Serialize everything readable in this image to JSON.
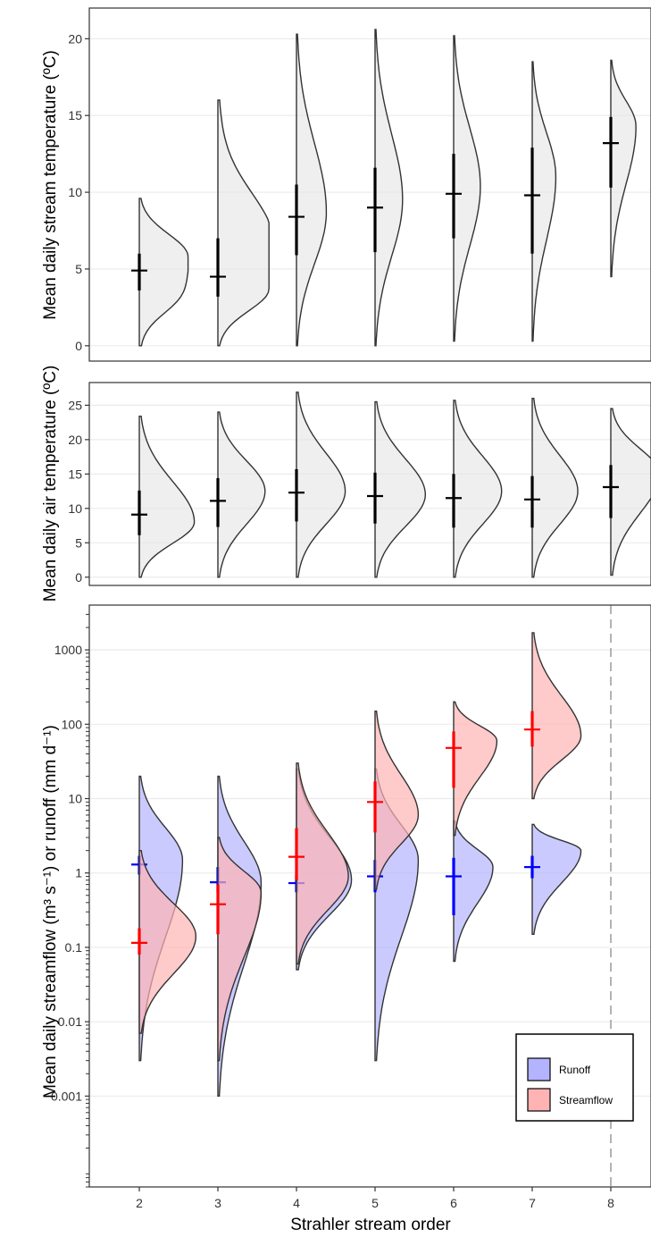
{
  "chart_data": [
    {
      "type": "violin",
      "ylabel": "Mean daily stream temperature (ºC)",
      "ylim": [
        -1,
        22
      ],
      "yticks": [
        0,
        5,
        10,
        15,
        20
      ],
      "grid": true,
      "violins": [
        {
          "x": 2,
          "ymin": 0,
          "ymax": 9.6,
          "peak": 5.8,
          "width": 0.62,
          "lump": 3.0,
          "median": 4.9,
          "lo": 3.6,
          "hi": 6.0,
          "color": "#000000"
        },
        {
          "x": 3,
          "ymin": 0,
          "ymax": 16.0,
          "peak": 3.7,
          "width": 0.65,
          "lump": 8.0,
          "median": 4.5,
          "lo": 3.2,
          "hi": 7.0,
          "color": "#000000"
        },
        {
          "x": 4,
          "ymin": 0,
          "ymax": 20.3,
          "peak": 8.7,
          "width": 0.38,
          "median": 8.4,
          "lo": 5.9,
          "hi": 10.5,
          "color": "#000000"
        },
        {
          "x": 5,
          "ymin": 0,
          "ymax": 20.6,
          "peak": 9.5,
          "width": 0.35,
          "median": 9.0,
          "lo": 6.1,
          "hi": 11.6,
          "color": "#000000"
        },
        {
          "x": 6,
          "ymin": 0.3,
          "ymax": 20.2,
          "peak": 10.4,
          "width": 0.34,
          "median": 9.9,
          "lo": 7.0,
          "hi": 12.5,
          "color": "#000000"
        },
        {
          "x": 7,
          "ymin": 0.3,
          "ymax": 18.5,
          "peak": 11.0,
          "width": 0.3,
          "median": 9.8,
          "lo": 6.0,
          "hi": 12.9,
          "color": "#000000"
        },
        {
          "x": 8,
          "ymin": 4.5,
          "ymax": 18.6,
          "peak": 14.3,
          "width": 0.32,
          "median": 13.2,
          "lo": 10.3,
          "hi": 14.9,
          "color": "#000000"
        }
      ]
    },
    {
      "type": "violin",
      "ylabel": "Mean daily air temperature (ºC)",
      "ylim": [
        -1.2,
        28.3
      ],
      "yticks": [
        0,
        5,
        10,
        15,
        20,
        25
      ],
      "grid": true,
      "violins": [
        {
          "x": 2,
          "ymin": 0,
          "ymax": 23.4,
          "peak": 8.0,
          "width": 0.7,
          "median": 9.1,
          "lo": 6.1,
          "hi": 12.6,
          "color": "#000000"
        },
        {
          "x": 3,
          "ymin": 0,
          "ymax": 24.0,
          "peak": 12.5,
          "width": 0.6,
          "median": 11.1,
          "lo": 7.3,
          "hi": 14.4,
          "color": "#000000"
        },
        {
          "x": 4,
          "ymin": 0,
          "ymax": 26.9,
          "peak": 12.5,
          "width": 0.62,
          "median": 12.3,
          "lo": 8.1,
          "hi": 15.7,
          "color": "#000000"
        },
        {
          "x": 5,
          "ymin": 0,
          "ymax": 25.5,
          "peak": 12.0,
          "width": 0.64,
          "median": 11.8,
          "lo": 7.8,
          "hi": 15.2,
          "color": "#000000"
        },
        {
          "x": 6,
          "ymin": 0,
          "ymax": 25.7,
          "peak": 12.5,
          "width": 0.61,
          "median": 11.5,
          "lo": 7.2,
          "hi": 15.0,
          "color": "#000000"
        },
        {
          "x": 7,
          "ymin": 0,
          "ymax": 26.0,
          "peak": 12.5,
          "width": 0.58,
          "median": 11.3,
          "lo": 7.2,
          "hi": 14.7,
          "color": "#000000"
        },
        {
          "x": 8,
          "ymin": 0.3,
          "ymax": 24.5,
          "peak": 15.0,
          "width": 0.62,
          "median": 13.1,
          "lo": 8.6,
          "hi": 16.3,
          "color": "#000000"
        }
      ]
    },
    {
      "type": "violin",
      "log_y": true,
      "xlabel": "Strahler stream order",
      "ylabel": "Mean daily streamflow (m³ s⁻¹)  or runoff (mm d⁻¹)",
      "ylim": [
        6e-05,
        4000
      ],
      "yticks": [
        0.001,
        0.01,
        0.1,
        1,
        10,
        100,
        1000
      ],
      "ytick_labels": [
        "0.001",
        "0.01",
        "0.1",
        "1",
        "10",
        "100",
        "1000"
      ],
      "xticks": [
        2,
        3,
        4,
        5,
        6,
        7,
        8
      ],
      "xtick_labels": [
        "2",
        "3",
        "4",
        "5",
        "6",
        "7",
        "8"
      ],
      "vline": {
        "x": 8,
        "style": "dashed",
        "color": "#b3b3b3"
      },
      "grid": true,
      "legend": {
        "placement": "bottom-right",
        "entries": [
          {
            "label": "Runoff",
            "color": "#b3b3ff"
          },
          {
            "label": "Streamflow",
            "color": "#ffb3b3"
          }
        ]
      },
      "series": [
        {
          "name": "Runoff",
          "fill": "#b3b3ff",
          "marker": "#0000ff",
          "violins": [
            {
              "x": 2,
              "ymin": 0.003,
              "ymax": 20,
              "peak": 1.5,
              "width": 0.55,
              "median": 1.3,
              "lo": 0.95,
              "hi": 1.7
            },
            {
              "x": 3,
              "ymin": 0.001,
              "ymax": 20,
              "peak": 0.75,
              "width": 0.55,
              "median": 0.75,
              "lo": 0.55,
              "hi": 1.2
            },
            {
              "x": 4,
              "ymin": 0.05,
              "ymax": 25,
              "peak": 0.8,
              "width": 0.7,
              "median": 0.73,
              "lo": 0.55,
              "hi": 0.95
            },
            {
              "x": 5,
              "ymin": 0.003,
              "ymax": 25,
              "peak": 1.5,
              "width": 0.55,
              "median": 0.9,
              "lo": 0.55,
              "hi": 1.5
            },
            {
              "x": 6,
              "ymin": 0.065,
              "ymax": 5,
              "peak": 1.2,
              "width": 0.5,
              "median": 0.9,
              "lo": 0.27,
              "hi": 1.6
            },
            {
              "x": 7,
              "ymin": 0.15,
              "ymax": 4.5,
              "peak": 2.0,
              "width": 0.62,
              "median": 1.2,
              "lo": 0.85,
              "hi": 1.7
            }
          ]
        },
        {
          "name": "Streamflow",
          "fill": "#ffb3b3",
          "marker": "#ff0000",
          "violins": [
            {
              "x": 2,
              "ymin": 0.007,
              "ymax": 2,
              "peak": 0.14,
              "width": 0.72,
              "median": 0.115,
              "lo": 0.08,
              "hi": 0.18
            },
            {
              "x": 3,
              "ymin": 0.003,
              "ymax": 3,
              "peak": 0.55,
              "width": 0.55,
              "median": 0.38,
              "lo": 0.15,
              "hi": 0.7
            },
            {
              "x": 4,
              "ymin": 0.06,
              "ymax": 30,
              "peak": 0.9,
              "width": 0.66,
              "median": 1.65,
              "lo": 0.8,
              "hi": 4.0
            },
            {
              "x": 5,
              "ymin": 0.6,
              "ymax": 150,
              "peak": 6.0,
              "width": 0.55,
              "median": 9.0,
              "lo": 3.5,
              "hi": 17
            },
            {
              "x": 6,
              "ymin": 3.2,
              "ymax": 200,
              "peak": 60,
              "width": 0.55,
              "median": 48,
              "lo": 14,
              "hi": 80
            },
            {
              "x": 7,
              "ymin": 10,
              "ymax": 1700,
              "peak": 70,
              "width": 0.62,
              "median": 85,
              "lo": 50,
              "hi": 150
            }
          ]
        }
      ]
    }
  ]
}
